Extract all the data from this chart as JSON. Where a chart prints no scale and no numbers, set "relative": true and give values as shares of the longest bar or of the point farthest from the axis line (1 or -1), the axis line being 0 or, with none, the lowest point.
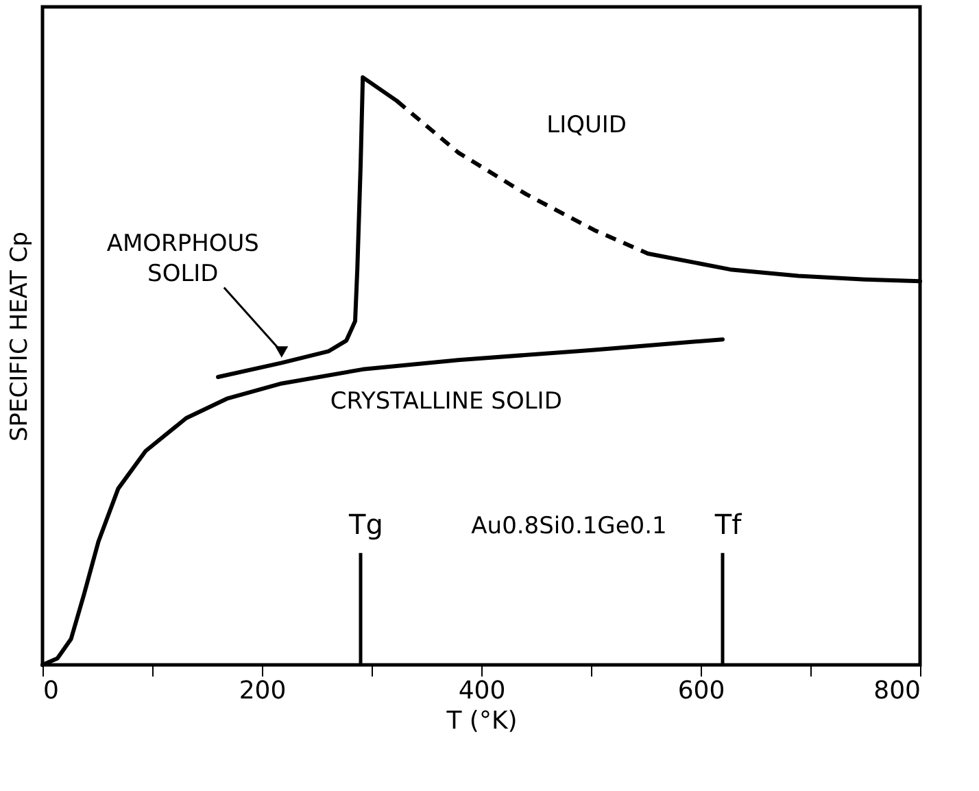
{
  "chart_data": {
    "type": "line",
    "relative": true,
    "xlabel": "T        (°K)",
    "ylabel": "SPECIFIC HEAT Cp",
    "xlim": [
      0,
      800
    ],
    "xticks": [
      0,
      {
        "value": 100,
        "label": null
      },
      200,
      {
        "value": 300,
        "label": null
      },
      400,
      {
        "value": 500,
        "label": null
      },
      600,
      {
        "value": 700,
        "label": null
      },
      800
    ],
    "grid": false,
    "marker": "none",
    "series": [
      {
        "color": "#000000",
        "line_style": "solid",
        "x": [
          0,
          13.6,
          26,
          38,
          51,
          69,
          94,
          131,
          168,
          218,
          292,
          379,
          503,
          620
        ],
        "values": [
          0,
          0.011,
          0.044,
          0.121,
          0.21,
          0.3,
          0.364,
          0.42,
          0.453,
          0.479,
          0.503,
          0.519,
          0.536,
          0.554
        ]
      },
      {
        "color": "#000000",
        "line_style": "solid",
        "x": [
          160,
          218,
          261,
          277,
          285,
          287,
          290,
          292,
          323
        ],
        "values": [
          0.49,
          0.514,
          0.534,
          0.552,
          0.585,
          0.673,
          0.85,
          1.0,
          0.96
        ]
      },
      {
        "color": "#000000",
        "line_style": "dashed",
        "x": [
          323,
          379,
          441,
          503,
          552
        ],
        "values": [
          0.96,
          0.872,
          0.801,
          0.74,
          0.7
        ]
      },
      {
        "color": "#000000",
        "line_style": "solid",
        "x": [
          552,
          627,
          689,
          750,
          800
        ],
        "values": [
          0.7,
          0.673,
          0.662,
          0.656,
          0.653
        ]
      }
    ],
    "ref_lines": [
      {
        "axis": "x",
        "value": 290,
        "label": "Tg",
        "color": "#000000"
      },
      {
        "axis": "x",
        "value": 620,
        "label": "Tf",
        "color": "#000000"
      }
    ],
    "annotations": [
      "LIQUID",
      "AMORPHOUS\nSOLID",
      "CRYSTALLINE SOLID",
      "Au0.8Si0.1Ge0.1"
    ]
  }
}
